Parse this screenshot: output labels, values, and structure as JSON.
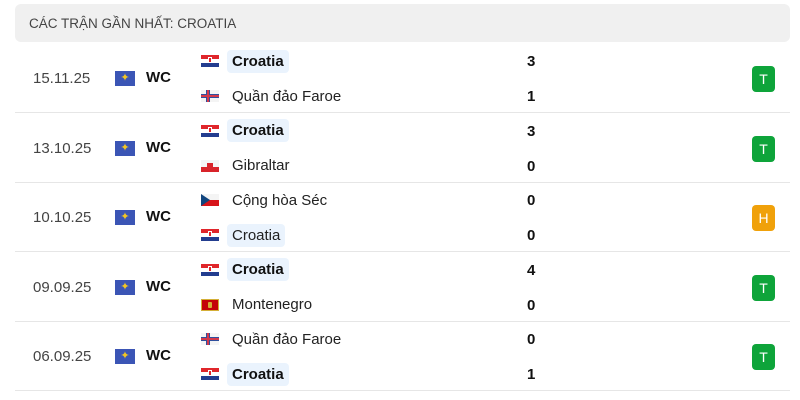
{
  "header": {
    "title": "CÁC TRẬN GẦN NHẤT: CROATIA"
  },
  "colors": {
    "win": "#0ea43a",
    "draw": "#f0a10a",
    "highlight": "#eaf3fd"
  },
  "matches": [
    {
      "date": "15.11.25",
      "competition": "WC",
      "competition_icon": "world-map-icon",
      "home": {
        "name": "Croatia",
        "flag": "croatia",
        "highlight": true,
        "bold": true
      },
      "away": {
        "name": "Quần đảo Faroe",
        "flag": "faroe",
        "highlight": false,
        "bold": false
      },
      "home_score": "3",
      "away_score": "1",
      "result": "T",
      "result_type": "win"
    },
    {
      "date": "13.10.25",
      "competition": "WC",
      "competition_icon": "world-map-icon",
      "home": {
        "name": "Croatia",
        "flag": "croatia",
        "highlight": true,
        "bold": true
      },
      "away": {
        "name": "Gibraltar",
        "flag": "gibraltar",
        "highlight": false,
        "bold": false
      },
      "home_score": "3",
      "away_score": "0",
      "result": "T",
      "result_type": "win"
    },
    {
      "date": "10.10.25",
      "competition": "WC",
      "competition_icon": "world-map-icon",
      "home": {
        "name": "Cộng hòa Séc",
        "flag": "czech",
        "highlight": false,
        "bold": false
      },
      "away": {
        "name": "Croatia",
        "flag": "croatia",
        "highlight": true,
        "bold": false
      },
      "home_score": "0",
      "away_score": "0",
      "result": "H",
      "result_type": "draw"
    },
    {
      "date": "09.09.25",
      "competition": "WC",
      "competition_icon": "world-map-icon",
      "home": {
        "name": "Croatia",
        "flag": "croatia",
        "highlight": true,
        "bold": true
      },
      "away": {
        "name": "Montenegro",
        "flag": "montenegro",
        "highlight": false,
        "bold": false
      },
      "home_score": "4",
      "away_score": "0",
      "result": "T",
      "result_type": "win"
    },
    {
      "date": "06.09.25",
      "competition": "WC",
      "competition_icon": "world-map-icon",
      "home": {
        "name": "Quần đảo Faroe",
        "flag": "faroe",
        "highlight": false,
        "bold": false
      },
      "away": {
        "name": "Croatia",
        "flag": "croatia",
        "highlight": true,
        "bold": true
      },
      "home_score": "0",
      "away_score": "1",
      "result": "T",
      "result_type": "win"
    }
  ]
}
